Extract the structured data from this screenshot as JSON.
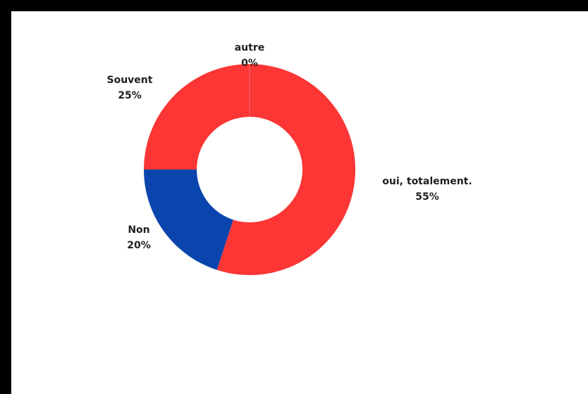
{
  "chart_data": {
    "type": "pie",
    "style": "donut",
    "slices": [
      {
        "label": "oui, totalement.",
        "value": 55,
        "display": "55%",
        "color": "#fc3535"
      },
      {
        "label": "Non",
        "value": 20,
        "display": "20%",
        "color": "#0a45ad"
      },
      {
        "label": "Souvent",
        "value": 25,
        "display": "25%",
        "color": "#fc3535"
      },
      {
        "label": "autre",
        "value": 0,
        "display": "0%",
        "color": "#fc3535"
      }
    ],
    "legend": "none",
    "labels_position": "outside"
  },
  "colors": {
    "background": "#ffffff",
    "border": "#000000",
    "separator": "#f07070"
  }
}
